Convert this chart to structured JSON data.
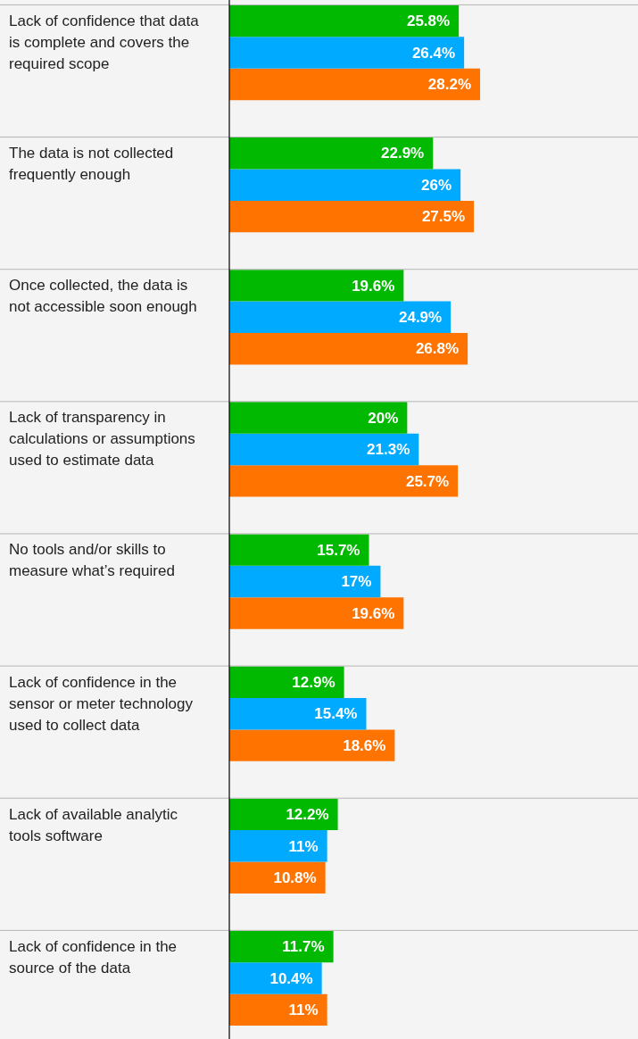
{
  "chart_data": {
    "type": "bar",
    "orientation": "horizontal",
    "grid": "y",
    "legend": false,
    "tick_labels": "y",
    "categories": [
      "Lack of confidence that data is complete and covers the required scope",
      "The data is not collected frequently enough",
      "Once collected, the data is not accessible soon enough",
      "Lack of transparency in calculations or assumptions used to estimate data",
      "No tools and/or skills to measure what’s required",
      "Lack of confidence in the sensor or meter technology used to collect data",
      "Lack of available analytic tools software",
      "Lack of confidence in the source of the data"
    ],
    "series": [
      {
        "color": "#00b900",
        "values": [
          25.8,
          22.9,
          19.6,
          20,
          15.7,
          12.9,
          12.2,
          11.7
        ],
        "value_labels": [
          "25.8%",
          "22.9%",
          "19.6%",
          "20%",
          "15.7%",
          "12.9%",
          "12.2%",
          "11.7%"
        ]
      },
      {
        "color": "#00aaff",
        "values": [
          26.4,
          26,
          24.9,
          21.3,
          17,
          15.4,
          11,
          10.4
        ],
        "value_labels": [
          "26.4%",
          "26%",
          "24.9%",
          "21.3%",
          "17%",
          "15.4%",
          "11%",
          "10.4%"
        ]
      },
      {
        "color": "#ff7300",
        "values": [
          28.2,
          27.5,
          26.8,
          25.7,
          19.6,
          18.6,
          10.8,
          11
        ],
        "value_labels": [
          "28.2%",
          "27.5%",
          "26.8%",
          "25.7%",
          "19.6%",
          "18.6%",
          "10.8%",
          "11%"
        ]
      }
    ]
  }
}
